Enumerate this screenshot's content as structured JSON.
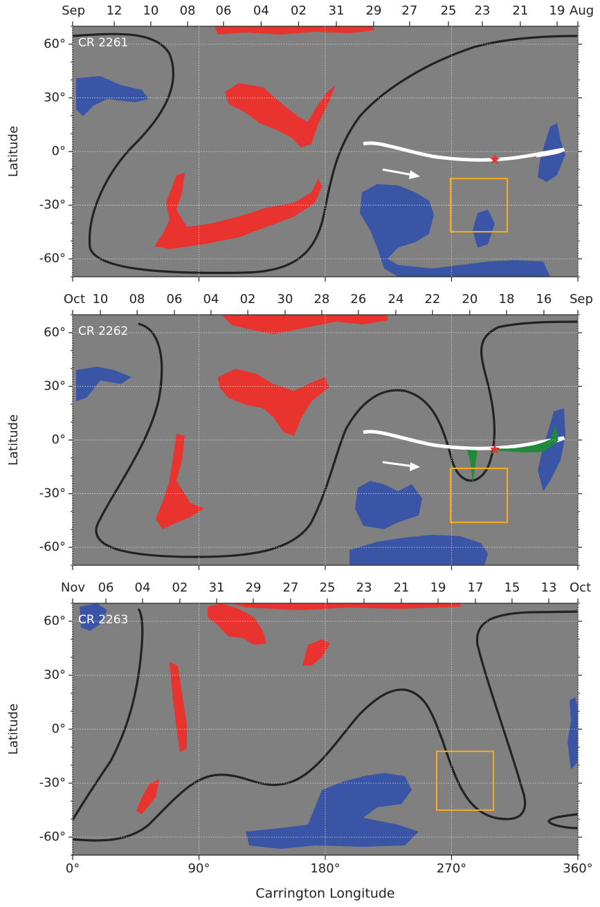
{
  "chart_data": [
    {
      "type": "map",
      "title": "CR 2261",
      "ylabel": "Latitude",
      "xlim": [
        0,
        360
      ],
      "ylim": [
        -70,
        70
      ],
      "xticks": [
        0,
        90,
        180,
        270,
        360
      ],
      "yticks": [
        {
          "value": -60,
          "label": "-60°"
        },
        {
          "value": -30,
          "label": "-30°"
        },
        {
          "value": 0,
          "label": "0°"
        },
        {
          "value": 30,
          "label": "30°"
        },
        {
          "value": 60,
          "label": "60°"
        }
      ],
      "x2ticks": [
        {
          "value": 0,
          "label": "Sep"
        },
        {
          "value": 29.6,
          "label": "12"
        },
        {
          "value": 55.7,
          "label": "10"
        },
        {
          "value": 81.9,
          "label": "08"
        },
        {
          "value": 107.5,
          "label": "06"
        },
        {
          "value": 134.3,
          "label": "04"
        },
        {
          "value": 161,
          "label": "02"
        },
        {
          "value": 187.9,
          "label": "31"
        },
        {
          "value": 214.5,
          "label": "29"
        },
        {
          "value": 240.1,
          "label": "27"
        },
        {
          "value": 267.8,
          "label": "25"
        },
        {
          "value": 291.9,
          "label": "23"
        },
        {
          "value": 319,
          "label": "21"
        },
        {
          "value": 345.2,
          "label": "19"
        },
        {
          "value": 360,
          "label": "Aug"
        }
      ],
      "grid": true
    },
    {
      "type": "map",
      "title": "CR 2262",
      "ylabel": "Latitude",
      "xlim": [
        0,
        360
      ],
      "ylim": [
        -70,
        70
      ],
      "xticks": [
        0,
        90,
        180,
        270,
        360
      ],
      "yticks": [
        {
          "value": -60,
          "label": "-60°"
        },
        {
          "value": -30,
          "label": "-30°"
        },
        {
          "value": 0,
          "label": "0°"
        },
        {
          "value": 30,
          "label": "30°"
        },
        {
          "value": 60,
          "label": "60°"
        }
      ],
      "x2ticks": [
        {
          "value": 0,
          "label": "Oct"
        },
        {
          "value": 19.7,
          "label": "10"
        },
        {
          "value": 45.9,
          "label": "08"
        },
        {
          "value": 72.5,
          "label": "06"
        },
        {
          "value": 98.6,
          "label": "04"
        },
        {
          "value": 124.8,
          "label": "02"
        },
        {
          "value": 151.4,
          "label": "30"
        },
        {
          "value": 177.5,
          "label": "28"
        },
        {
          "value": 203.6,
          "label": "26"
        },
        {
          "value": 230.3,
          "label": "24"
        },
        {
          "value": 256.4,
          "label": "22"
        },
        {
          "value": 283,
          "label": "20"
        },
        {
          "value": 309.2,
          "label": "18"
        },
        {
          "value": 335.8,
          "label": "16"
        },
        {
          "value": 360,
          "label": "Sep"
        }
      ],
      "grid": true
    },
    {
      "type": "map",
      "title": "CR 2263",
      "ylabel": "Latitude",
      "xlabel": "Carrington Longitude",
      "xlim": [
        0,
        360
      ],
      "ylim": [
        -70,
        70
      ],
      "xticks": [
        {
          "value": 0,
          "label": "0°"
        },
        {
          "value": 90,
          "label": "90°"
        },
        {
          "value": 180,
          "label": "180°"
        },
        {
          "value": 270,
          "label": "270°"
        },
        {
          "value": 360,
          "label": "360°"
        }
      ],
      "yticks": [
        {
          "value": -60,
          "label": "-60°"
        },
        {
          "value": -30,
          "label": "-30°"
        },
        {
          "value": 0,
          "label": "0°"
        },
        {
          "value": 30,
          "label": "30°"
        },
        {
          "value": 60,
          "label": "60°"
        }
      ],
      "x2ticks": [
        {
          "value": 0,
          "label": "Nov"
        },
        {
          "value": 23.7,
          "label": "06"
        },
        {
          "value": 49.8,
          "label": "04"
        },
        {
          "value": 76.4,
          "label": "02"
        },
        {
          "value": 102.6,
          "label": "31"
        },
        {
          "value": 128.7,
          "label": "29"
        },
        {
          "value": 155.3,
          "label": "27"
        },
        {
          "value": 181.5,
          "label": "25"
        },
        {
          "value": 207.6,
          "label": "23"
        },
        {
          "value": 234.2,
          "label": "21"
        },
        {
          "value": 260.4,
          "label": "19"
        },
        {
          "value": 287,
          "label": "17"
        },
        {
          "value": 313.1,
          "label": "15"
        },
        {
          "value": 339.3,
          "label": "13"
        },
        {
          "value": 360,
          "label": "Oct"
        }
      ],
      "grid": true
    }
  ]
}
